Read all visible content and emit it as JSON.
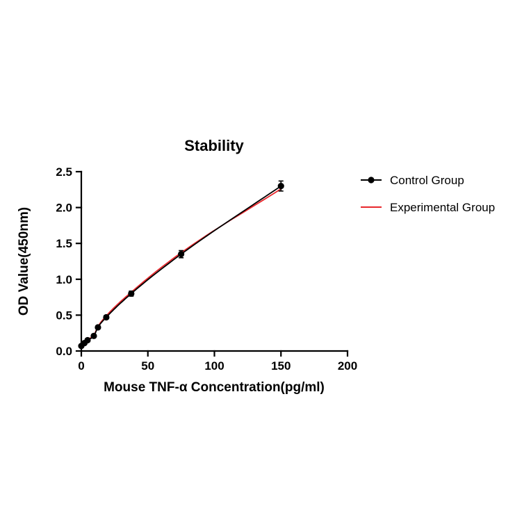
{
  "page": {
    "background": "#ffffff"
  },
  "chart_data": {
    "type": "line",
    "title": "Stability",
    "xlabel": "Mouse TNF-α Concentration(pg/ml)",
    "ylabel": "OD Value(450nm)",
    "xlim": [
      0,
      200
    ],
    "ylim": [
      0,
      2.5
    ],
    "x_tick_values": [
      0,
      50,
      100,
      150,
      200
    ],
    "x_tick_labels": [
      "0",
      "50",
      "100",
      "150",
      "200"
    ],
    "y_tick_values": [
      0,
      0.5,
      1.0,
      1.5,
      2.0,
      2.5
    ],
    "y_tick_labels": [
      "0.0",
      "0.5",
      "1.0",
      "1.5",
      "2.0",
      "2.5"
    ],
    "grid": false,
    "legend_position": "right",
    "x": [
      0,
      2.34,
      4.69,
      9.38,
      12.5,
      18.75,
      37.5,
      75,
      150
    ],
    "series": [
      {
        "name": "Control Group",
        "color": "#000000",
        "marker": "circle",
        "show_markers": true,
        "values": [
          0.07,
          0.11,
          0.15,
          0.21,
          0.33,
          0.47,
          0.8,
          1.35,
          2.3
        ],
        "errors": [
          0.01,
          0.01,
          0.015,
          0.02,
          0.02,
          0.025,
          0.035,
          0.05,
          0.07
        ]
      },
      {
        "name": "Experimental Group",
        "color": "#e8272c",
        "marker": "none",
        "show_markers": false,
        "values": [
          0.08,
          0.12,
          0.16,
          0.22,
          0.34,
          0.49,
          0.82,
          1.37,
          2.26
        ]
      }
    ]
  }
}
